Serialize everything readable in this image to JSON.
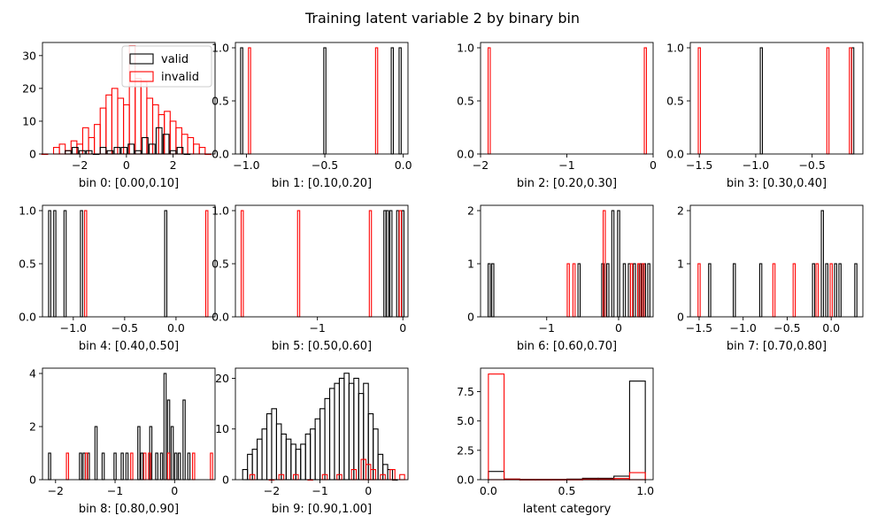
{
  "figure": {
    "title": "Training latent variable 2 by binary bin"
  },
  "colors": {
    "valid": "#000000",
    "invalid": "#ff0000",
    "axes": "#000000"
  },
  "chart_data": [
    {
      "type": "step-histogram",
      "xlabel": "bin 0: [0.00,0.10]",
      "xlim": [
        -3.6,
        3.8
      ],
      "ylim": [
        0,
        34
      ],
      "xticks": [
        -2,
        0,
        2
      ],
      "xtick_labels": [
        "−2",
        "0",
        "2"
      ],
      "yticks": [
        0,
        10,
        20,
        30
      ],
      "ytick_labels": [
        "0",
        "10",
        "20",
        "30"
      ],
      "legend": {
        "loc": "upper right",
        "entries": [
          "valid",
          "invalid"
        ]
      },
      "series": [
        {
          "name": "invalid",
          "color": "#ff0000",
          "x": [
            -3.5,
            -3.0,
            -2.75,
            -2.5,
            -2.25,
            -2.0,
            -1.75,
            -1.5,
            -1.25,
            -1.0,
            -0.75,
            -0.5,
            -0.25,
            0.0,
            0.25,
            0.5,
            0.75,
            1.0,
            1.25,
            1.5,
            1.75,
            2.0,
            2.25,
            2.5,
            2.75,
            3.0,
            3.25,
            3.5
          ],
          "y": [
            0,
            2,
            3,
            1,
            4,
            3,
            8,
            5,
            9,
            14,
            18,
            20,
            17,
            15,
            33,
            23,
            22,
            17,
            15,
            12,
            13,
            10,
            8,
            6,
            5,
            3,
            2,
            0
          ]
        },
        {
          "name": "valid",
          "color": "#000000",
          "x": [
            -2.5,
            -2.2,
            -1.9,
            -1.6,
            -1.3,
            -1.0,
            -0.7,
            -0.4,
            -0.1,
            0.2,
            0.5,
            0.8,
            1.1,
            1.4,
            1.7,
            2.0,
            2.3,
            2.6
          ],
          "y": [
            1,
            2,
            1,
            1,
            0,
            2,
            1,
            2,
            2,
            3,
            1,
            5,
            3,
            8,
            6,
            1,
            2,
            0
          ]
        }
      ]
    },
    {
      "type": "step-histogram",
      "xlabel": "bin 1: [0.10,0.20]",
      "xlim": [
        -1.07,
        0.03
      ],
      "ylim": [
        0,
        1.05
      ],
      "xticks": [
        -1.0,
        -0.5,
        0.0
      ],
      "xtick_labels": [
        "−1.0",
        "−0.5",
        "0.0"
      ],
      "yticks": [
        0,
        0.5,
        1.0
      ],
      "ytick_labels": [
        "0.0",
        "0.5",
        "1.0"
      ],
      "series": [
        {
          "name": "valid",
          "color": "#000000",
          "x": [
            -1.03,
            -0.5,
            -0.07,
            -0.02
          ],
          "y": [
            1,
            1,
            1,
            1
          ]
        },
        {
          "name": "invalid",
          "color": "#ff0000",
          "x": [
            -0.98,
            -0.17
          ],
          "y": [
            1,
            1
          ]
        }
      ]
    },
    {
      "type": "step-histogram",
      "xlabel": "bin 2: [0.20,0.30]",
      "xlim": [
        -2.0,
        0.0
      ],
      "ylim": [
        0,
        1.05
      ],
      "xticks": [
        -2,
        -1,
        0
      ],
      "xtick_labels": [
        "−2",
        "−1",
        "0"
      ],
      "yticks": [
        0,
        0.5,
        1.0
      ],
      "ytick_labels": [
        "0.0",
        "0.5",
        "1.0"
      ],
      "series": [
        {
          "name": "valid",
          "color": "#000000",
          "x": [],
          "y": []
        },
        {
          "name": "invalid",
          "color": "#ff0000",
          "x": [
            -1.9,
            -0.09
          ],
          "y": [
            1,
            1
          ]
        }
      ]
    },
    {
      "type": "step-histogram",
      "xlabel": "bin 3: [0.30,0.40]",
      "xlim": [
        -1.58,
        -0.05
      ],
      "ylim": [
        0,
        1.05
      ],
      "xticks": [
        -1.5,
        -1.0,
        -0.5
      ],
      "xtick_labels": [
        "−1.5",
        "−1.0",
        "−0.5"
      ],
      "yticks": [
        0,
        0.5,
        1.0
      ],
      "ytick_labels": [
        "0.0",
        "0.5",
        "1.0"
      ],
      "series": [
        {
          "name": "valid",
          "color": "#000000",
          "x": [
            -0.95,
            -0.14
          ],
          "y": [
            1,
            1
          ]
        },
        {
          "name": "invalid",
          "color": "#ff0000",
          "x": [
            -1.5,
            -0.36,
            -0.16
          ],
          "y": [
            1,
            1,
            1
          ]
        }
      ]
    },
    {
      "type": "step-histogram",
      "xlabel": "bin 4: [0.40,0.50]",
      "xlim": [
        -1.3,
        0.38
      ],
      "ylim": [
        0,
        1.05
      ],
      "xticks": [
        -1.0,
        -0.5,
        0.0
      ],
      "xtick_labels": [
        "−1.0",
        "−0.5",
        "0.0"
      ],
      "yticks": [
        0,
        0.5,
        1.0
      ],
      "ytick_labels": [
        "0.0",
        "0.5",
        "1.0"
      ],
      "series": [
        {
          "name": "valid",
          "color": "#000000",
          "x": [
            -1.23,
            -1.18,
            -1.08,
            -0.92,
            -0.1
          ],
          "y": [
            1,
            1,
            1,
            1,
            1
          ]
        },
        {
          "name": "invalid",
          "color": "#ff0000",
          "x": [
            -0.88,
            0.3
          ],
          "y": [
            1,
            1
          ]
        }
      ]
    },
    {
      "type": "step-histogram",
      "xlabel": "bin 5: [0.50,0.60]",
      "xlim": [
        -1.96,
        0.06
      ],
      "ylim": [
        0,
        1.05
      ],
      "xticks": [
        -1,
        0
      ],
      "xtick_labels": [
        "−1",
        "0"
      ],
      "yticks": [
        0,
        0.5,
        1.0
      ],
      "ytick_labels": [
        "0.0",
        "0.5",
        "1.0"
      ],
      "series": [
        {
          "name": "valid",
          "color": "#000000",
          "x": [
            -0.21,
            -0.18,
            -0.14,
            -0.06,
            0.0
          ],
          "y": [
            1,
            1,
            1,
            1,
            1
          ]
        },
        {
          "name": "invalid",
          "color": "#ff0000",
          "x": [
            -1.88,
            -1.22,
            -0.38,
            -0.03
          ],
          "y": [
            1,
            1,
            1,
            1
          ]
        }
      ]
    },
    {
      "type": "step-histogram",
      "xlabel": "bin 6: [0.60,0.70]",
      "xlim": [
        -1.92,
        0.48
      ],
      "ylim": [
        0,
        2.1
      ],
      "xticks": [
        -1,
        0
      ],
      "xtick_labels": [
        "−1",
        "0"
      ],
      "yticks": [
        0,
        1,
        2
      ],
      "ytick_labels": [
        "0",
        "1",
        "2"
      ],
      "series": [
        {
          "name": "valid",
          "color": "#000000",
          "x": [
            -1.8,
            -1.75,
            -0.55,
            -0.22,
            -0.15,
            -0.08,
            0.0,
            0.08,
            0.15,
            0.22,
            0.3,
            0.36,
            0.42
          ],
          "y": [
            1,
            1,
            1,
            1,
            1,
            2,
            2,
            1,
            1,
            1,
            1,
            1,
            1
          ]
        },
        {
          "name": "invalid",
          "color": "#ff0000",
          "x": [
            -0.7,
            -0.62,
            -0.2,
            0.18,
            0.28,
            0.34
          ],
          "y": [
            1,
            1,
            2,
            1,
            1,
            1
          ]
        }
      ]
    },
    {
      "type": "step-histogram",
      "xlabel": "bin 7: [0.70,0.80]",
      "xlim": [
        -1.6,
        0.36
      ],
      "ylim": [
        0,
        2.1
      ],
      "xticks": [
        -1.5,
        -1.0,
        -0.5,
        0.0
      ],
      "xtick_labels": [
        "−1.5",
        "−1.0",
        "−0.5",
        "0.0"
      ],
      "yticks": [
        0,
        1,
        2
      ],
      "ytick_labels": [
        "0",
        "1",
        "2"
      ],
      "series": [
        {
          "name": "valid",
          "color": "#000000",
          "x": [
            -1.38,
            -1.1,
            -0.8,
            -0.2,
            -0.1,
            -0.05,
            0.05,
            0.1,
            0.28
          ],
          "y": [
            1,
            1,
            1,
            1,
            2,
            1,
            1,
            1,
            1
          ]
        },
        {
          "name": "invalid",
          "color": "#ff0000",
          "x": [
            -1.5,
            -0.65,
            -0.42,
            -0.16,
            0.0
          ],
          "y": [
            1,
            1,
            1,
            1,
            1
          ]
        }
      ]
    },
    {
      "type": "step-histogram",
      "xlabel": "bin 8: [0.80,0.90]",
      "xlim": [
        -2.22,
        0.68
      ],
      "ylim": [
        0,
        4.2
      ],
      "xticks": [
        -2,
        -1,
        0
      ],
      "xtick_labels": [
        "−2",
        "−1",
        "0"
      ],
      "yticks": [
        0,
        2,
        4
      ],
      "ytick_labels": [
        "0",
        "2",
        "4"
      ],
      "series": [
        {
          "name": "valid",
          "color": "#000000",
          "x": [
            -2.1,
            -1.58,
            -1.52,
            -1.45,
            -1.32,
            -1.2,
            -1.0,
            -0.88,
            -0.8,
            -0.6,
            -0.55,
            -0.4,
            -0.3,
            -0.22,
            -0.16,
            -0.1,
            -0.04,
            0.02,
            0.08,
            0.16,
            0.24
          ],
          "y": [
            1,
            1,
            1,
            1,
            2,
            1,
            1,
            1,
            1,
            2,
            1,
            2,
            1,
            1,
            4,
            3,
            2,
            1,
            1,
            3,
            1
          ]
        },
        {
          "name": "invalid",
          "color": "#ff0000",
          "x": [
            -1.8,
            -1.48,
            -0.72,
            -0.5,
            -0.42,
            -0.1,
            0.32,
            0.62
          ],
          "y": [
            1,
            1,
            1,
            1,
            1,
            1,
            1,
            1
          ]
        }
      ]
    },
    {
      "type": "step-histogram",
      "xlabel": "bin 9: [0.90,1.00]",
      "xlim": [
        -2.75,
        0.82
      ],
      "ylim": [
        0,
        22
      ],
      "xticks": [
        -2,
        -1,
        0
      ],
      "xtick_labels": [
        "−2",
        "−1",
        "0"
      ],
      "yticks": [
        0,
        10,
        20
      ],
      "ytick_labels": [
        "0",
        "10",
        "20"
      ],
      "series": [
        {
          "name": "valid",
          "color": "#000000",
          "x": [
            -2.55,
            -2.45,
            -2.35,
            -2.25,
            -2.15,
            -2.05,
            -1.95,
            -1.85,
            -1.75,
            -1.65,
            -1.55,
            -1.45,
            -1.35,
            -1.25,
            -1.15,
            -1.05,
            -0.95,
            -0.85,
            -0.75,
            -0.65,
            -0.55,
            -0.45,
            -0.35,
            -0.25,
            -0.15,
            -0.05,
            0.05,
            0.15,
            0.25,
            0.35,
            0.45,
            0.55
          ],
          "y": [
            2,
            5,
            6,
            8,
            10,
            13,
            14,
            11,
            9,
            8,
            7,
            6,
            7,
            9,
            10,
            12,
            14,
            16,
            18,
            19,
            20,
            21,
            19,
            20,
            17,
            19,
            13,
            10,
            5,
            3,
            2,
            0
          ]
        },
        {
          "name": "invalid",
          "color": "#ff0000",
          "x": [
            -2.4,
            -2.0,
            -1.8,
            -1.5,
            -1.2,
            -0.9,
            -0.6,
            -0.3,
            -0.1,
            0.0,
            0.1,
            0.3,
            0.5,
            0.7
          ],
          "y": [
            1,
            0,
            1,
            1,
            0,
            1,
            1,
            2,
            4,
            3,
            2,
            1,
            2,
            1
          ]
        }
      ]
    },
    {
      "type": "step-histogram",
      "xlabel": "latent category",
      "xlim": [
        -0.05,
        1.05
      ],
      "ylim": [
        0,
        9.5
      ],
      "xticks": [
        0.0,
        0.5,
        1.0
      ],
      "xtick_labels": [
        "0.0",
        "0.5",
        "1.0"
      ],
      "yticks": [
        0,
        2.5,
        5.0,
        7.5
      ],
      "ytick_labels": [
        "0.0",
        "2.5",
        "5.0",
        "7.5"
      ],
      "series": [
        {
          "name": "valid",
          "color": "#000000",
          "x": [
            0.05,
            0.15,
            0.25,
            0.35,
            0.45,
            0.55,
            0.65,
            0.75,
            0.85,
            0.95
          ],
          "y": [
            0.7,
            0.05,
            0.02,
            0.02,
            0.02,
            0.05,
            0.12,
            0.12,
            0.3,
            8.4
          ]
        },
        {
          "name": "invalid",
          "color": "#ff0000",
          "x": [
            0.05,
            0.15,
            0.25,
            0.35,
            0.45,
            0.55,
            0.65,
            0.75,
            0.85,
            0.95
          ],
          "y": [
            9.0,
            0.05,
            0.02,
            0.02,
            0.02,
            0.02,
            0.05,
            0.05,
            0.1,
            0.6
          ]
        }
      ]
    }
  ]
}
